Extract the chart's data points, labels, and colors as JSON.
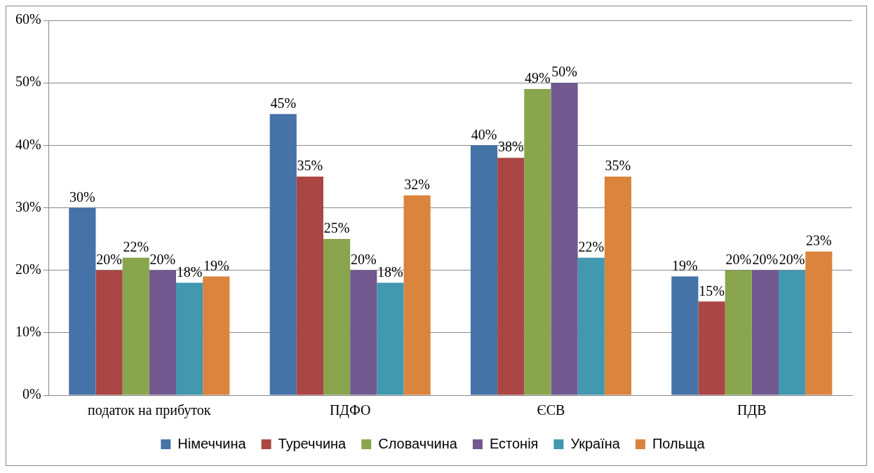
{
  "chart_data": {
    "type": "bar",
    "categories": [
      "податок на прибуток",
      "ПДФО",
      "ЄСВ",
      "ПДВ"
    ],
    "series": [
      {
        "name": "Німеччина",
        "color": "#4572a7",
        "values": [
          30,
          45,
          40,
          19
        ],
        "value_labels": [
          "30%",
          "45%",
          "40%",
          "19%"
        ]
      },
      {
        "name": "Туреччина",
        "color": "#aa4643",
        "values": [
          20,
          35,
          38,
          15
        ],
        "value_labels": [
          "20%",
          "35%",
          "38%",
          "15%"
        ]
      },
      {
        "name": "Словаччина",
        "color": "#89a54e",
        "values": [
          22,
          25,
          49,
          20
        ],
        "value_labels": [
          "22%",
          "25%",
          "49%",
          "20%"
        ]
      },
      {
        "name": "Естонія",
        "color": "#71588f",
        "values": [
          20,
          20,
          50,
          20
        ],
        "value_labels": [
          "20%",
          "20%",
          "50%",
          "20%"
        ]
      },
      {
        "name": "Україна",
        "color": "#4198af",
        "values": [
          18,
          18,
          22,
          20
        ],
        "value_labels": [
          "18%",
          "18%",
          "22%",
          "20%"
        ]
      },
      {
        "name": "Польща",
        "color": "#db843d",
        "values": [
          19,
          32,
          35,
          23
        ],
        "value_labels": [
          "19%",
          "32%",
          "35%",
          "23%"
        ]
      }
    ],
    "ylim": [
      0,
      60
    ],
    "yticks": [
      {
        "value": 0,
        "label": "0%"
      },
      {
        "value": 10,
        "label": "10%"
      },
      {
        "value": 20,
        "label": "20%"
      },
      {
        "value": 30,
        "label": "30%"
      },
      {
        "value": 40,
        "label": "40%"
      },
      {
        "value": 50,
        "label": "50%"
      },
      {
        "value": 60,
        "label": "60%"
      }
    ],
    "grid": "y",
    "legend": "bottom"
  }
}
